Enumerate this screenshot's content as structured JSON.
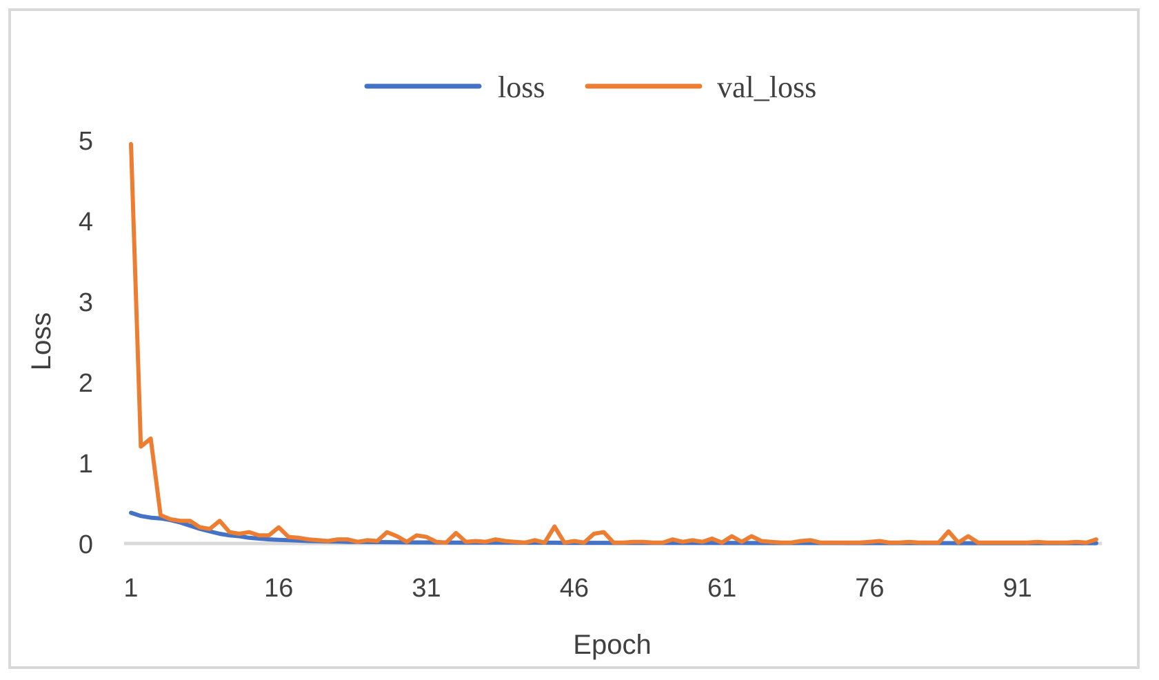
{
  "chart_data": {
    "type": "line",
    "xlabel": "Epoch",
    "ylabel": "Loss",
    "x_tick_labels": [
      "1",
      "16",
      "31",
      "46",
      "61",
      "76",
      "91"
    ],
    "y_tick_labels": [
      "0",
      "1",
      "2",
      "3",
      "4",
      "5"
    ],
    "xlim": [
      1,
      99
    ],
    "ylim": [
      0,
      5
    ],
    "grid": false,
    "legend_position": "top",
    "x": [
      1,
      2,
      3,
      4,
      5,
      6,
      7,
      8,
      9,
      10,
      11,
      12,
      13,
      14,
      15,
      16,
      17,
      18,
      19,
      20,
      21,
      22,
      23,
      24,
      25,
      26,
      27,
      28,
      29,
      30,
      31,
      32,
      33,
      34,
      35,
      36,
      37,
      38,
      39,
      40,
      41,
      42,
      43,
      44,
      45,
      46,
      47,
      48,
      49,
      50,
      51,
      52,
      53,
      54,
      55,
      56,
      57,
      58,
      59,
      60,
      61,
      62,
      63,
      64,
      65,
      66,
      67,
      68,
      69,
      70,
      71,
      72,
      73,
      74,
      75,
      76,
      77,
      78,
      79,
      80,
      81,
      82,
      83,
      84,
      85,
      86,
      87,
      88,
      89,
      90,
      91,
      92,
      93,
      94,
      95,
      96,
      97,
      98,
      99
    ],
    "series": [
      {
        "name": "loss",
        "color": "#4472C4",
        "values": [
          0.38,
          0.34,
          0.32,
          0.31,
          0.29,
          0.26,
          0.22,
          0.18,
          0.15,
          0.12,
          0.1,
          0.09,
          0.07,
          0.06,
          0.05,
          0.045,
          0.04,
          0.035,
          0.03,
          0.028,
          0.025,
          0.023,
          0.02,
          0.019,
          0.018,
          0.017,
          0.016,
          0.015,
          0.014,
          0.013,
          0.013,
          0.012,
          0.012,
          0.011,
          0.011,
          0.01,
          0.01,
          0.01,
          0.01,
          0.01,
          0.009,
          0.009,
          0.009,
          0.009,
          0.008,
          0.008,
          0.008,
          0.008,
          0.008,
          0.007,
          0.007,
          0.007,
          0.007,
          0.007,
          0.007,
          0.006,
          0.006,
          0.006,
          0.006,
          0.006,
          0.006,
          0.006,
          0.006,
          0.005,
          0.005,
          0.005,
          0.005,
          0.005,
          0.005,
          0.005,
          0.005,
          0.005,
          0.005,
          0.004,
          0.004,
          0.004,
          0.004,
          0.004,
          0.004,
          0.004,
          0.004,
          0.004,
          0.004,
          0.004,
          0.003,
          0.003,
          0.003,
          0.003,
          0.003,
          0.003,
          0.003,
          0.003,
          0.003,
          0.003,
          0.003,
          0.003,
          0.003,
          0.003,
          0.003
        ]
      },
      {
        "name": "val_loss",
        "color": "#ED7D31",
        "values": [
          4.95,
          1.2,
          1.3,
          0.35,
          0.3,
          0.28,
          0.28,
          0.2,
          0.18,
          0.28,
          0.14,
          0.12,
          0.14,
          0.1,
          0.1,
          0.2,
          0.08,
          0.07,
          0.05,
          0.04,
          0.03,
          0.05,
          0.05,
          0.02,
          0.04,
          0.03,
          0.14,
          0.09,
          0.02,
          0.1,
          0.08,
          0.02,
          0.01,
          0.13,
          0.02,
          0.03,
          0.02,
          0.05,
          0.03,
          0.02,
          0.01,
          0.04,
          0.01,
          0.21,
          0.01,
          0.03,
          0.01,
          0.12,
          0.14,
          0.01,
          0.01,
          0.02,
          0.02,
          0.01,
          0.01,
          0.05,
          0.02,
          0.04,
          0.02,
          0.06,
          0.01,
          0.09,
          0.02,
          0.09,
          0.03,
          0.02,
          0.01,
          0.01,
          0.03,
          0.04,
          0.01,
          0.01,
          0.01,
          0.01,
          0.01,
          0.02,
          0.03,
          0.01,
          0.01,
          0.02,
          0.01,
          0.01,
          0.01,
          0.15,
          0.01,
          0.09,
          0.01,
          0.01,
          0.01,
          0.01,
          0.01,
          0.01,
          0.02,
          0.01,
          0.01,
          0.01,
          0.02,
          0.01,
          0.05
        ]
      }
    ]
  }
}
